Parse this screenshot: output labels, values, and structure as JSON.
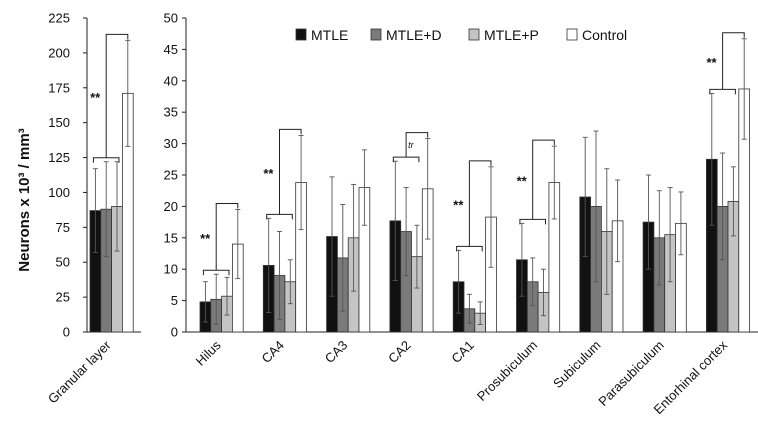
{
  "chart_data": {
    "type": "bar",
    "ylabel": "Neurons x 10³ / mm³",
    "legend": {
      "placement": "top",
      "items": [
        "MTLE",
        "MTLE+D",
        "MTLE+P",
        "Control"
      ]
    },
    "colors": {
      "MTLE": "#111111",
      "MTLE+D": "#7a7a7a",
      "MTLE+P": "#c4c4c4",
      "Control": "#ffffff"
    },
    "panels": [
      {
        "name": "granular",
        "ylim": [
          0,
          225
        ],
        "yticks": [
          "0",
          "25",
          "50",
          "75",
          "100",
          "125",
          "150",
          "175",
          "200",
          "225"
        ],
        "categories": [
          "Granular layer"
        ],
        "series": [
          {
            "name": "MTLE",
            "values": [
              87
            ],
            "errors": [
              30
            ]
          },
          {
            "name": "MTLE+D",
            "values": [
              88
            ],
            "errors": [
              34
            ]
          },
          {
            "name": "MTLE+P",
            "values": [
              90
            ],
            "errors": [
              32
            ]
          },
          {
            "name": "Control",
            "values": [
              171
            ],
            "errors": [
              38
            ]
          }
        ]
      },
      {
        "name": "regions",
        "ylim": [
          0,
          50
        ],
        "yticks": [
          "0",
          "5",
          "10",
          "15",
          "20",
          "25",
          "30",
          "35",
          "40",
          "45",
          "50"
        ],
        "categories": [
          "Hilus",
          "CA4",
          "CA3",
          "CA2",
          "CA1",
          "Prosubiculum",
          "Subiculum",
          "Parasubiculum",
          "Entorhinal cortex"
        ],
        "series": [
          {
            "name": "MTLE",
            "values": [
              4.8,
              10.6,
              15.2,
              17.7,
              8.0,
              11.5,
              21.5,
              17.5,
              27.5
            ],
            "errors": [
              3.2,
              7.5,
              9.5,
              9.5,
              5.0,
              5.8,
              9.5,
              7.5,
              10.5
            ]
          },
          {
            "name": "MTLE+D",
            "values": [
              5.2,
              9.0,
              11.8,
              16.0,
              3.7,
              8.0,
              20.0,
              15.0,
              20.0
            ],
            "errors": [
              4.0,
              7.0,
              8.5,
              7.0,
              2.3,
              3.8,
              12.0,
              7.5,
              8.5
            ]
          },
          {
            "name": "MTLE+P",
            "values": [
              5.7,
              8.0,
              15.0,
              12.0,
              3.0,
              6.3,
              16.0,
              15.5,
              20.8
            ],
            "errors": [
              3.0,
              3.5,
              8.5,
              5.0,
              1.8,
              3.7,
              10.0,
              7.5,
              5.5
            ]
          },
          {
            "name": "Control",
            "values": [
              14.0,
              23.8,
              23.0,
              22.8,
              18.3,
              23.8,
              17.7,
              17.3,
              38.7
            ],
            "errors": [
              5.5,
              7.5,
              6.0,
              8.0,
              8.0,
              5.8,
              6.5,
              5.0,
              8.0
            ]
          }
        ],
        "annotations": [
          {
            "category": "Hilus",
            "label": "**"
          },
          {
            "category": "CA4",
            "label": "**"
          },
          {
            "category": "CA2",
            "label": "tr"
          },
          {
            "category": "CA1",
            "label": "**"
          },
          {
            "category": "Prosubiculum",
            "label": "**"
          },
          {
            "category": "Entorhinal cortex",
            "label": "**"
          }
        ]
      }
    ],
    "granular_annotation": {
      "category": "Granular layer",
      "label": "**"
    }
  }
}
